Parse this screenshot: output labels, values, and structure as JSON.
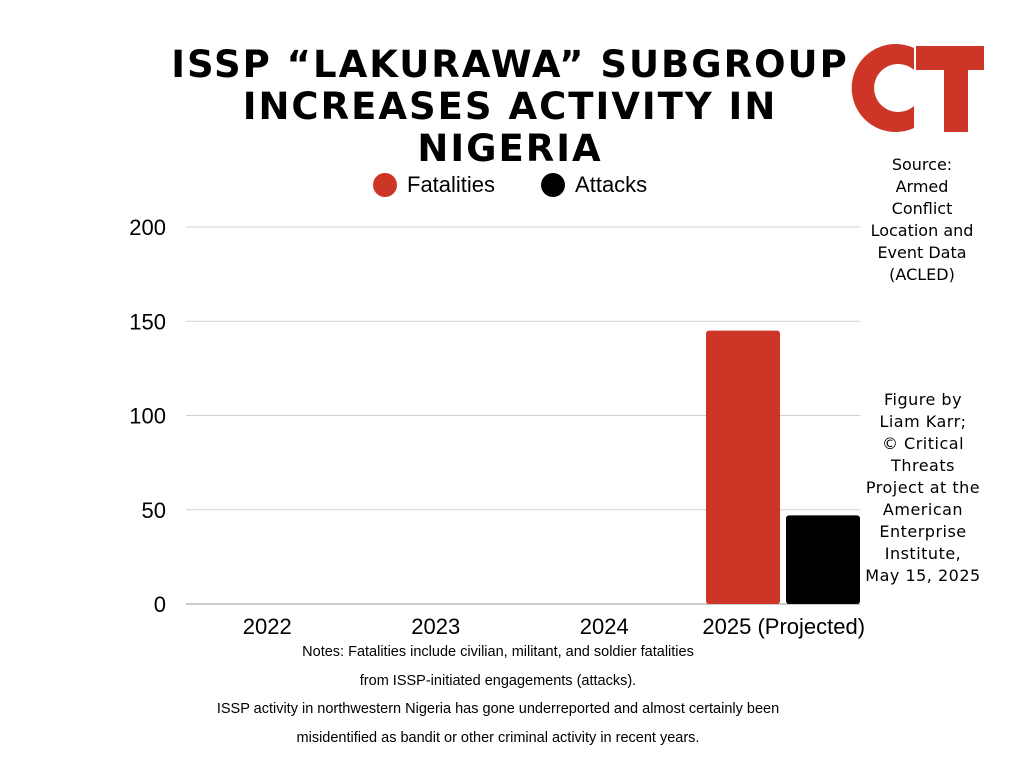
{
  "header": {
    "title_line1": "ISSP “LAKURAWA” SUBGROUP",
    "title_line2": "INCREASES ACTIVITY IN NIGERIA",
    "logo_text": "CT"
  },
  "colors": {
    "fatalities": "#cd3527",
    "attacks": "#000000",
    "grid": "#d0d0d0",
    "logo": "#cd3527"
  },
  "source": {
    "lines": [
      "Source:",
      "Armed",
      "Conflict",
      "Location and",
      "Event Data",
      "(ACLED)"
    ]
  },
  "credit": {
    "lines": [
      "Figure by",
      "Liam Karr;",
      "© Critical",
      "Threats",
      "Project at the",
      "American",
      "Enterprise",
      "Institute,",
      "May 15, 2025"
    ]
  },
  "notes": {
    "lines": [
      "Notes: Fatalities include civilian, militant, and soldier fatalities",
      "from ISSP-initiated engagements (attacks).",
      "ISSP activity in northwestern Nigeria has gone underreported and almost certainly been",
      "misidentified as bandit or other criminal activity in recent years."
    ]
  },
  "chart_data": {
    "type": "bar",
    "title": "ISSP “LAKURAWA” SUBGROUP INCREASES ACTIVITY IN NIGERIA",
    "xlabel": "",
    "ylabel": "",
    "categories": [
      "2022",
      "2023",
      "2024",
      "2025 (Projected)"
    ],
    "series": [
      {
        "name": "Fatalities",
        "color": "#cd3527",
        "values": [
          0,
          0,
          0,
          145
        ]
      },
      {
        "name": "Attacks",
        "color": "#000000",
        "values": [
          0,
          0,
          0,
          47
        ]
      }
    ],
    "ylim": [
      0,
      200
    ],
    "yticks": [
      0,
      50,
      100,
      150,
      200
    ],
    "grid": true,
    "legend_position": "top-center"
  }
}
